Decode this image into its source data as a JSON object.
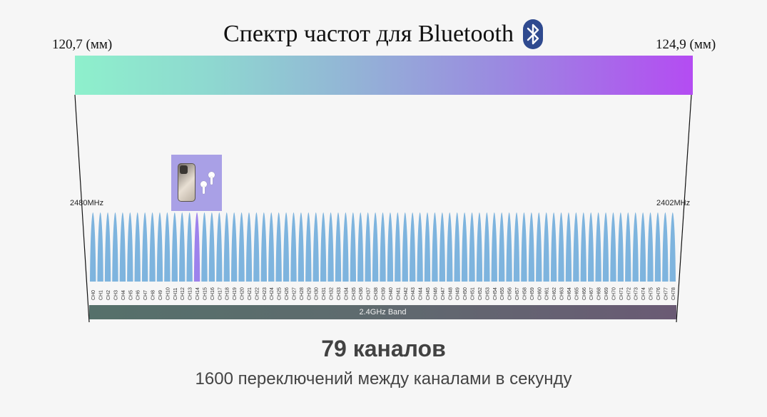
{
  "title": "Спектр частот для Bluetooth",
  "wavelength_left": "120,7 (мм)",
  "wavelength_right": "124,9  (мм)",
  "freq_left": "2480MHz",
  "freq_right": "2402MHz",
  "band_label": "2.4GHz Band",
  "headline": "79 каналов",
  "subline": "1600 переключений между каналами в секунду",
  "channels": [
    "CH0",
    "CH1",
    "CH2",
    "CH3",
    "CH4",
    "CH5",
    "CH6",
    "CH7",
    "CH8",
    "CH9",
    "CH10",
    "CH11",
    "CH12",
    "CH13",
    "CH14",
    "CH15",
    "CH16",
    "CH17",
    "CH18",
    "CH19",
    "CH20",
    "CH21",
    "CH22",
    "CH23",
    "CH24",
    "CH25",
    "CH26",
    "CH27",
    "CH28",
    "CH29",
    "CH30",
    "CH31",
    "CH32",
    "CH33",
    "CH34",
    "CH35",
    "CH36",
    "CH37",
    "CH38",
    "CH39",
    "CH40",
    "CH41",
    "CH42",
    "CH43",
    "CH44",
    "CH45",
    "CH46",
    "CH47",
    "CH48",
    "CH49",
    "CH50",
    "CH51",
    "CH52",
    "CH53",
    "CH54",
    "CH55",
    "CH56",
    "CH57",
    "CH58",
    "CH59",
    "CH60",
    "CH61",
    "CH62",
    "CH63",
    "CH64",
    "CH65",
    "CH66",
    "CH67",
    "CH68",
    "CH69",
    "CH70",
    "CH71",
    "CH72",
    "CH73",
    "CH74",
    "CH75",
    "CH76",
    "CH77",
    "CH78"
  ],
  "active_channel": "CH14",
  "colors": {
    "channel": "#7eb4de",
    "channel_active": "#9d82ec",
    "bluetooth_badge": "#2f4a8f"
  },
  "icons": {
    "title_icon": "bluetooth-icon",
    "device_icons": [
      "smartphone-icon",
      "earbuds-icon"
    ]
  }
}
